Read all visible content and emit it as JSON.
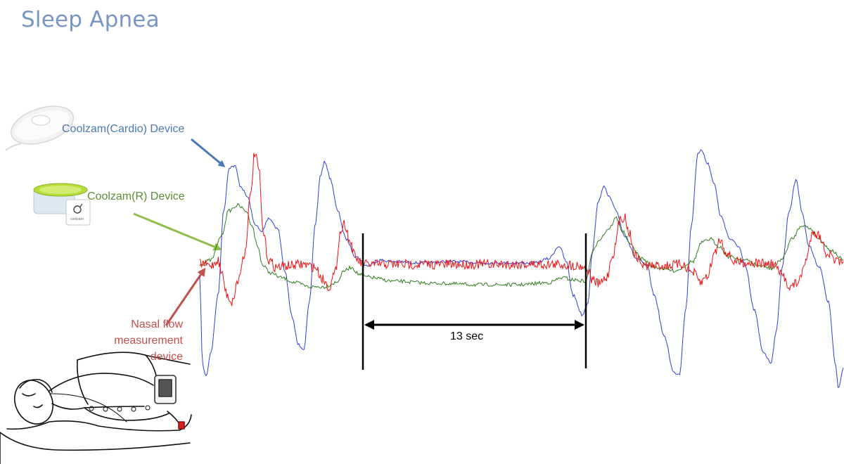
{
  "title": "Sleep Apnea",
  "labels": {
    "cardio": "Coolzam(Cardio) Device",
    "r_device": "Coolzam(R) Device",
    "nasal_line1": "Nasal flow",
    "nasal_line2": "measurement device",
    "r_device_brand": "coolzam"
  },
  "annotation": {
    "span": "13 sec"
  },
  "colors": {
    "title": "#7b95c2",
    "cardio": "#2f3fd6",
    "r_device": "#2e7d1e",
    "nasal": "#ee1111",
    "arrow_cardio": "#4a78b5",
    "arrow_r": "#8fbf4a",
    "arrow_nasal": "#c0504d"
  },
  "icons": [
    "cardio-device-image",
    "r-device-image",
    "patient-sketch-image"
  ]
}
